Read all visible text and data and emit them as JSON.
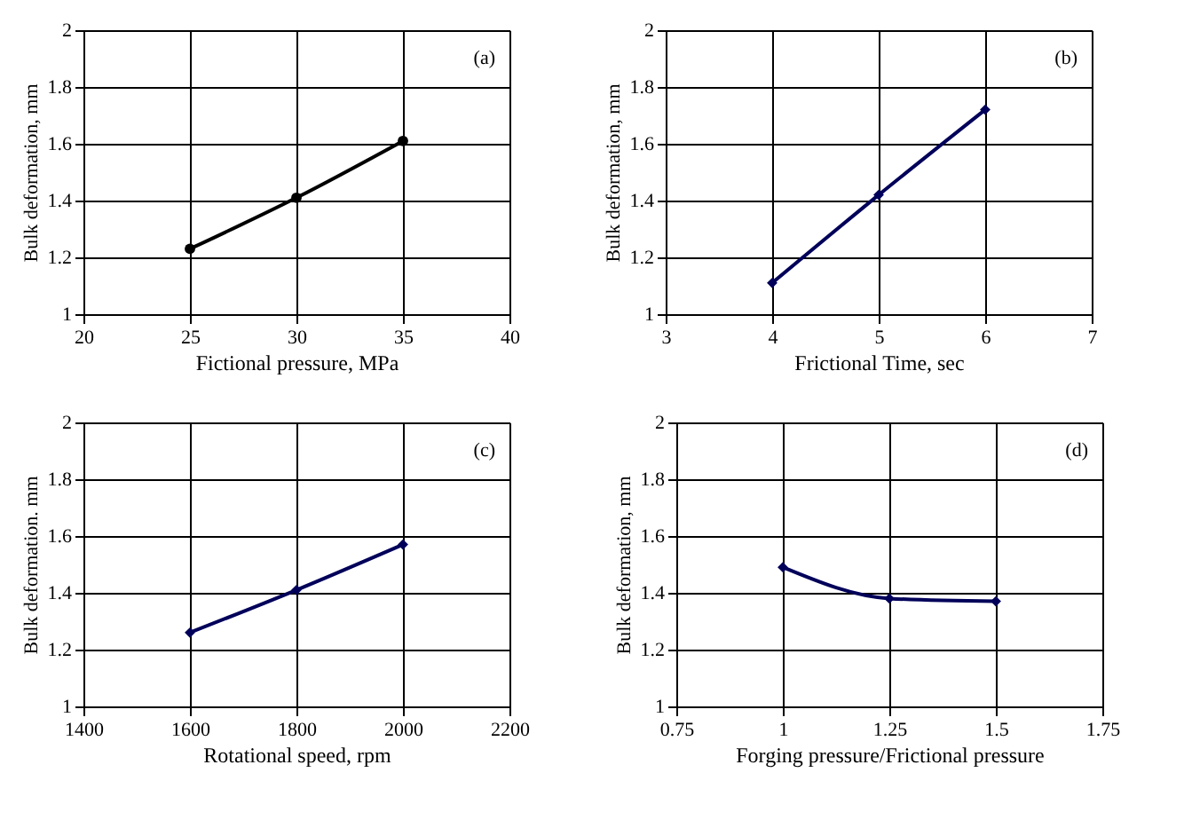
{
  "chart_data": [
    {
      "type": "line",
      "xlabel": "Fictional pressure, MPa",
      "ylabel": "Bulk deformation,  mm",
      "annotations": [
        "(a)"
      ],
      "x": [
        25,
        30,
        35
      ],
      "series": [
        {
          "color": "#000000",
          "values": [
            1.23,
            1.41,
            1.61
          ]
        }
      ],
      "xlim": [
        20,
        40
      ],
      "xticks": [
        20,
        25,
        30,
        35,
        40
      ],
      "ylim": [
        1,
        2
      ],
      "yticks": [
        1,
        1.2,
        1.4,
        1.6,
        1.8,
        2
      ],
      "grid": true,
      "marker": "circle",
      "line_style": "solid"
    },
    {
      "type": "line",
      "xlabel": "Frictional Time, sec",
      "ylabel": "Bulk deformation,  mm",
      "annotations": [
        "(b)"
      ],
      "x": [
        4,
        5,
        6
      ],
      "series": [
        {
          "color": "#00005a",
          "values": [
            1.11,
            1.42,
            1.72
          ]
        }
      ],
      "xlim": [
        3,
        7
      ],
      "xticks": [
        3,
        4,
        5,
        6,
        7
      ],
      "ylim": [
        1,
        2
      ],
      "yticks": [
        1,
        1.2,
        1.4,
        1.6,
        1.8,
        2
      ],
      "grid": true,
      "marker": "diamond",
      "line_style": "solid"
    },
    {
      "type": "line",
      "xlabel": "Rotational speed, rpm",
      "ylabel": "Bulk deformation. mm",
      "annotations": [
        "(c)"
      ],
      "x": [
        1600,
        1800,
        2000
      ],
      "series": [
        {
          "color": "#00005a",
          "values": [
            1.26,
            1.41,
            1.57
          ]
        }
      ],
      "xlim": [
        1400,
        2200
      ],
      "xticks": [
        1400,
        1600,
        1800,
        2000,
        2200
      ],
      "ylim": [
        1,
        2
      ],
      "yticks": [
        1,
        1.2,
        1.4,
        1.6,
        1.8,
        2
      ],
      "grid": true,
      "marker": "diamond",
      "line_style": "solid"
    },
    {
      "type": "line",
      "xlabel": "Forging pressure/Frictional pressure",
      "ylabel": "Bulk deformation, mm",
      "annotations": [
        "(d)"
      ],
      "x": [
        1,
        1.25,
        1.5
      ],
      "series": [
        {
          "color": "#00005a",
          "values": [
            1.49,
            1.38,
            1.37
          ]
        }
      ],
      "xlim": [
        0.75,
        1.75
      ],
      "xticks": [
        0.75,
        1,
        1.25,
        1.5,
        1.75
      ],
      "ylim": [
        1,
        2
      ],
      "yticks": [
        1,
        1.2,
        1.4,
        1.6,
        1.8,
        2
      ],
      "grid": true,
      "marker": "diamond",
      "line_style": "solid"
    }
  ]
}
